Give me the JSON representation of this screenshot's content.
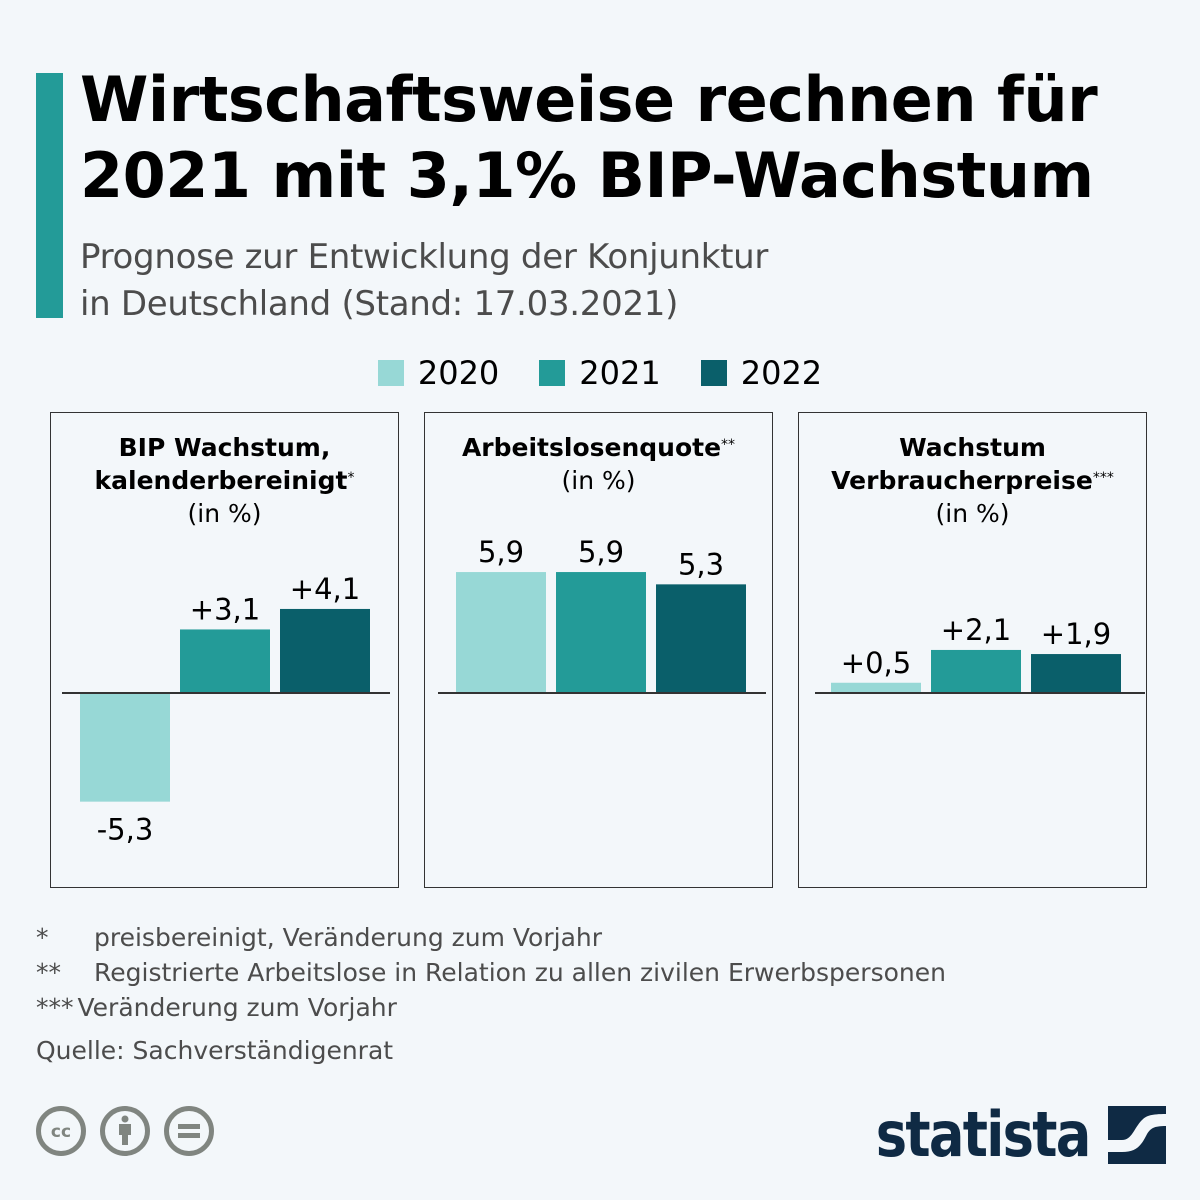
{
  "header": {
    "title_line1": "Wirtschaftsweise rechnen für",
    "title_line2": "2021 mit 3,1% BIP-Wachstum",
    "subtitle_line1": "Prognose zur Entwicklung der Konjunktur",
    "subtitle_line2": "in Deutschland (Stand: 17.03.2021)",
    "accent_color": "#239b98"
  },
  "chart_data": [
    {
      "type": "bar",
      "title": "BIP Wachstum, kalenderbereinigt",
      "title_line1": "BIP Wachstum,",
      "title_line2": "kalenderbereinigt",
      "footnote_mark": "*",
      "unit": "(in %)",
      "categories": [
        "2020",
        "2021",
        "2022"
      ],
      "values": [
        -5.3,
        3.1,
        4.1
      ],
      "labels": [
        "-5,3",
        "+3,1",
        "+4,1"
      ]
    },
    {
      "type": "bar",
      "title": "Arbeitslosenquote",
      "title_line1": "Arbeitslosenquote",
      "title_line2": "",
      "footnote_mark": "**",
      "unit": "(in %)",
      "categories": [
        "2020",
        "2021",
        "2022"
      ],
      "values": [
        5.9,
        5.9,
        5.3
      ],
      "labels": [
        "5,9",
        "5,9",
        "5,3"
      ]
    },
    {
      "type": "bar",
      "title": "Wachstum Verbraucherpreise",
      "title_line1": "Wachstum",
      "title_line2": "Verbraucherpreise",
      "footnote_mark": "***",
      "unit": "(in %)",
      "categories": [
        "2020",
        "2021",
        "2022"
      ],
      "values": [
        0.5,
        2.1,
        1.9
      ],
      "labels": [
        "+0,5",
        "+2,1",
        "+1,9"
      ]
    }
  ],
  "legend": [
    {
      "label": "2020",
      "color": "#97d8d6"
    },
    {
      "label": "2021",
      "color": "#239b98"
    },
    {
      "label": "2022",
      "color": "#0a5f6a"
    }
  ],
  "footnotes": [
    {
      "mark": "*",
      "text": "preisbereinigt, Veränderung zum Vorjahr"
    },
    {
      "mark": "**",
      "text": "Registrierte Arbeitslose in Relation zu allen zivilen Erwerbspersonen"
    },
    {
      "mark": "***",
      "text": "Veränderung zum Vorjahr"
    }
  ],
  "source": "Quelle: Sachverständigenrat",
  "license_icons": [
    "cc-icon",
    "attribution-icon",
    "no-derivatives-icon"
  ],
  "logo": {
    "text": "statista",
    "color": "#0f2a44"
  }
}
